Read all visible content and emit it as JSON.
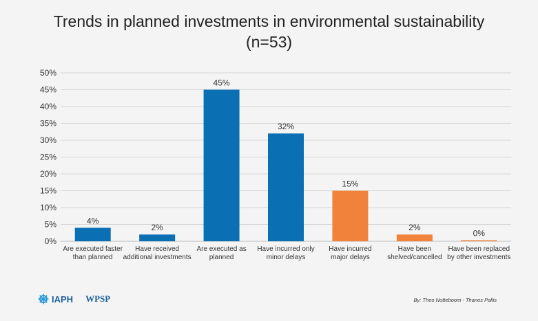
{
  "chart_data": {
    "type": "bar",
    "title_line1": "Trends in planned investments in environmental sustainability",
    "title_line2": "(n=53)",
    "categories": [
      [
        "Are executed faster",
        "than planned"
      ],
      [
        "Have received",
        "additional investments"
      ],
      [
        "Are executed as",
        "planned"
      ],
      [
        "Have incurred only",
        "minor delays"
      ],
      [
        "Have incurred",
        "major delays"
      ],
      [
        "Have been",
        "shelved/cancelled"
      ],
      [
        "Have been replaced",
        "by other investments"
      ]
    ],
    "values": [
      4,
      2,
      45,
      32,
      15,
      2,
      0
    ],
    "value_labels": [
      "4%",
      "2%",
      "45%",
      "32%",
      "15%",
      "2%",
      "0%"
    ],
    "bar_colors": [
      "#0b6fb4",
      "#0b6fb4",
      "#0b6fb4",
      "#0b6fb4",
      "#f0823b",
      "#f0823b",
      "#f0823b"
    ],
    "yticks": [
      0,
      5,
      10,
      15,
      20,
      25,
      30,
      35,
      40,
      45,
      50
    ],
    "ytick_labels": [
      "0%",
      "5%",
      "10%",
      "15%",
      "20%",
      "25%",
      "30%",
      "35%",
      "40%",
      "45%",
      "50%"
    ],
    "ylim": [
      0,
      50
    ],
    "grid": true,
    "xlabel": "",
    "ylabel": ""
  },
  "footer": {
    "logo1": "IAPH",
    "logo2": "WPSP",
    "credit": "By: Theo Notteboom - Thanos Pallis"
  }
}
